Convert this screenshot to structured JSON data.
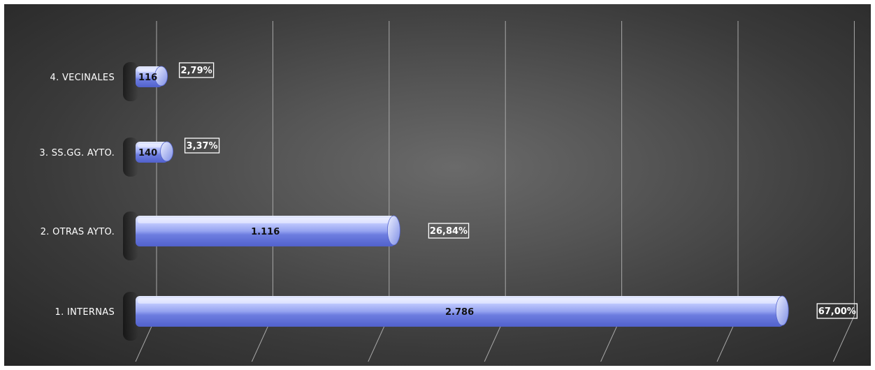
{
  "colors": {
    "background": "#4a4a4a",
    "bar_light": "#c9d2ff",
    "bar_mid": "#8e9cf0",
    "bar_dark": "#5565cf",
    "grid": "#a8a8a8",
    "label_text": "#ffffff",
    "value_text": "#111111"
  },
  "chart_data": {
    "type": "bar",
    "orientation": "horizontal",
    "style": "3d-cylinder",
    "categories": [
      "4. VECINALES",
      "3. SS.GG. AYTO.",
      "2. OTRAS AYTO.",
      "1. INTERNAS"
    ],
    "values": [
      116,
      140,
      1116,
      2786
    ],
    "value_labels": [
      "116",
      "140",
      "1.116",
      "2.786"
    ],
    "percent_labels": [
      "2,79%",
      "3,37%",
      "26,84%",
      "67,00%"
    ],
    "xlim": [
      0,
      3000
    ],
    "grid": true,
    "x_tick_labels_visible": false,
    "legend": "none",
    "title": "",
    "xlabel": "",
    "ylabel": ""
  }
}
